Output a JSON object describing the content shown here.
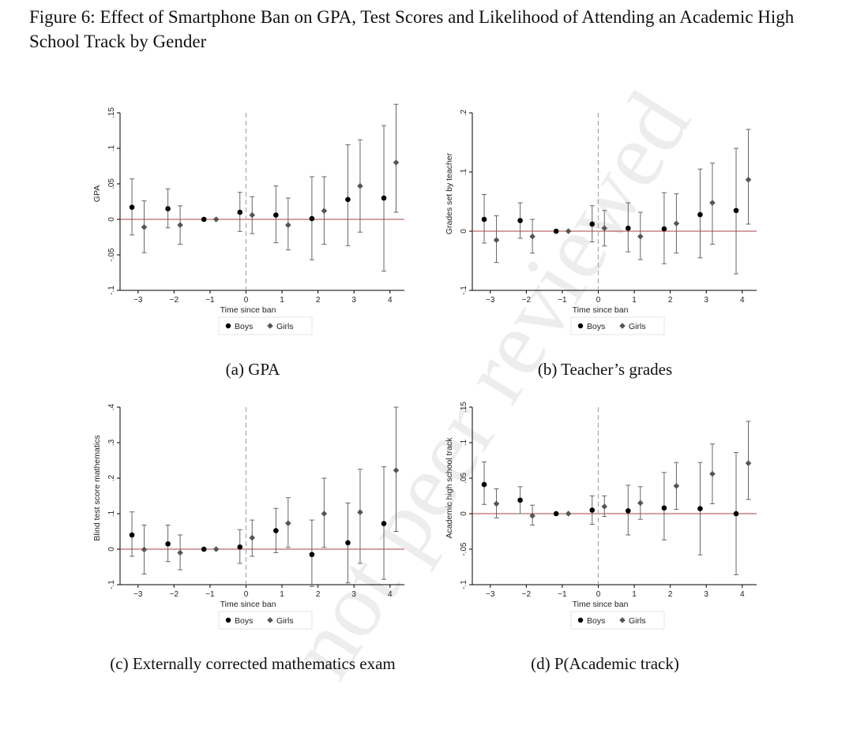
{
  "figure_title": "Figure 6: Effect of Smartphone Ban on GPA, Test Scores and Likelihood of Attending an Academic High School Track by Gender",
  "watermark_text": "not peer reviewed",
  "colors": {
    "boys": "#000000",
    "girls": "#555555",
    "zero_line": "#b04040",
    "ban_line": "#aaaaaa",
    "ci": "#666666"
  },
  "chart_data": [
    {
      "id": "a",
      "type": "scatter",
      "caption": "(a) GPA",
      "xlabel": "Time since ban",
      "ylabel": "GPA",
      "xticks": [
        -3,
        -2,
        -1,
        0,
        1,
        2,
        3,
        4
      ],
      "yticks": [
        -0.1,
        -0.05,
        0,
        0.05,
        0.1,
        0.15
      ],
      "ytick_labels": [
        "-.1",
        "-.05",
        "0",
        ".05",
        ".1",
        ".15"
      ],
      "ylim": [
        -0.1,
        0.15
      ],
      "xlim": [
        -3.5,
        4.4
      ],
      "legend": [
        "Boys",
        "Girls"
      ],
      "series": [
        {
          "name": "Boys",
          "x": [
            -3,
            -2,
            -1,
            0,
            1,
            2,
            3,
            4
          ],
          "y": [
            0.017,
            0.015,
            0.0,
            0.01,
            0.006,
            0.001,
            0.028,
            0.03
          ],
          "lo": [
            -0.022,
            -0.012,
            0.0,
            -0.017,
            -0.033,
            -0.057,
            -0.037,
            -0.073
          ],
          "hi": [
            0.057,
            0.043,
            0.0,
            0.038,
            0.047,
            0.06,
            0.105,
            0.132
          ]
        },
        {
          "name": "Girls",
          "x": [
            -3,
            -2,
            -1,
            0,
            1,
            2,
            3,
            4
          ],
          "y": [
            -0.011,
            -0.008,
            0.0,
            0.006,
            -0.008,
            0.012,
            0.047,
            0.08
          ],
          "lo": [
            -0.047,
            -0.035,
            0.0,
            -0.02,
            -0.043,
            -0.035,
            -0.018,
            0.01
          ],
          "hi": [
            0.026,
            0.019,
            0.0,
            0.032,
            0.03,
            0.06,
            0.112,
            0.162
          ]
        }
      ]
    },
    {
      "id": "b",
      "type": "scatter",
      "caption": "(b) Teacher’s grades",
      "xlabel": "Time since ban",
      "ylabel": "Grades set by teacher",
      "xticks": [
        -3,
        -2,
        -1,
        0,
        1,
        2,
        3,
        4
      ],
      "yticks": [
        -0.1,
        0,
        0.1,
        0.2
      ],
      "ytick_labels": [
        "-.1",
        "0",
        ".1",
        ".2"
      ],
      "ylim": [
        -0.1,
        0.2
      ],
      "xlim": [
        -3.5,
        4.4
      ],
      "legend": [
        "Boys",
        "Girls"
      ],
      "series": [
        {
          "name": "Boys",
          "x": [
            -3,
            -2,
            -1,
            0,
            1,
            2,
            3,
            4
          ],
          "y": [
            0.02,
            0.018,
            0.0,
            0.012,
            0.005,
            0.004,
            0.028,
            0.035
          ],
          "lo": [
            -0.02,
            -0.012,
            0.0,
            -0.018,
            -0.035,
            -0.055,
            -0.045,
            -0.072
          ],
          "hi": [
            0.062,
            0.048,
            0.0,
            0.043,
            0.048,
            0.065,
            0.105,
            0.14
          ]
        },
        {
          "name": "Girls",
          "x": [
            -3,
            -2,
            -1,
            0,
            1,
            2,
            3,
            4
          ],
          "y": [
            -0.015,
            -0.009,
            0.0,
            0.005,
            -0.009,
            0.013,
            0.048,
            0.087
          ],
          "lo": [
            -0.053,
            -0.037,
            0.0,
            -0.025,
            -0.048,
            -0.037,
            -0.022,
            0.012
          ],
          "hi": [
            0.026,
            0.02,
            0.0,
            0.035,
            0.032,
            0.063,
            0.115,
            0.172
          ]
        }
      ]
    },
    {
      "id": "c",
      "type": "scatter",
      "caption": "(c) Externally corrected mathematics exam",
      "xlabel": "Time since ban",
      "ylabel": "Blind test score mathematics",
      "xticks": [
        -3,
        -2,
        -1,
        0,
        1,
        2,
        3,
        4
      ],
      "yticks": [
        -0.1,
        0,
        0.1,
        0.2,
        0.3,
        0.4
      ],
      "ytick_labels": [
        "-.1",
        "0",
        ".1",
        ".2",
        ".3",
        ".4"
      ],
      "ylim": [
        -0.1,
        0.4
      ],
      "xlim": [
        -3.5,
        4.4
      ],
      "legend": [
        "Boys",
        "Girls"
      ],
      "series": [
        {
          "name": "Boys",
          "x": [
            -3,
            -2,
            -1,
            0,
            1,
            2,
            3,
            4
          ],
          "y": [
            0.04,
            0.015,
            0.0,
            0.006,
            0.052,
            -0.015,
            0.018,
            0.072
          ],
          "lo": [
            -0.02,
            -0.035,
            0.0,
            -0.04,
            -0.01,
            -0.105,
            -0.095,
            -0.085
          ],
          "hi": [
            0.105,
            0.068,
            0.0,
            0.055,
            0.115,
            0.082,
            0.13,
            0.232
          ]
        },
        {
          "name": "Girls",
          "x": [
            -3,
            -2,
            -1,
            0,
            1,
            2,
            3,
            4
          ],
          "y": [
            -0.001,
            -0.01,
            0.0,
            0.032,
            0.073,
            0.1,
            0.104,
            0.222
          ],
          "lo": [
            -0.07,
            -0.058,
            0.0,
            -0.02,
            0.005,
            0.005,
            -0.04,
            0.05
          ],
          "hi": [
            0.068,
            0.04,
            0.0,
            0.082,
            0.145,
            0.2,
            0.225,
            0.4
          ]
        }
      ]
    },
    {
      "id": "d",
      "type": "scatter",
      "caption": "(d) P(Academic track)",
      "xlabel": "Time since ban",
      "ylabel": "Academic high school track",
      "xticks": [
        -3,
        -2,
        -1,
        0,
        1,
        2,
        3,
        4
      ],
      "yticks": [
        -0.1,
        -0.05,
        0,
        0.05,
        0.1,
        0.15
      ],
      "ytick_labels": [
        "-.1",
        "-.05",
        "0",
        ".05",
        ".1",
        ".15"
      ],
      "ylim": [
        -0.1,
        0.15
      ],
      "xlim": [
        -3.5,
        4.4
      ],
      "legend": [
        "Boys",
        "Girls"
      ],
      "series": [
        {
          "name": "Boys",
          "x": [
            -3,
            -2,
            -1,
            0,
            1,
            2,
            3,
            4
          ],
          "y": [
            0.041,
            0.019,
            0.0,
            0.005,
            0.004,
            0.008,
            0.007,
            0.0
          ],
          "lo": [
            0.013,
            0.0,
            0.0,
            -0.015,
            -0.03,
            -0.037,
            -0.058,
            -0.086
          ],
          "hi": [
            0.073,
            0.038,
            0.0,
            0.025,
            0.04,
            0.058,
            0.072,
            0.086
          ]
        },
        {
          "name": "Girls",
          "x": [
            -3,
            -2,
            -1,
            0,
            1,
            2,
            3,
            4
          ],
          "y": [
            0.014,
            -0.003,
            0.0,
            0.01,
            0.015,
            0.039,
            0.056,
            0.071
          ],
          "lo": [
            -0.006,
            -0.016,
            0.0,
            -0.004,
            -0.008,
            0.006,
            0.014,
            0.02
          ],
          "hi": [
            0.035,
            0.012,
            0.0,
            0.025,
            0.038,
            0.072,
            0.098,
            0.13
          ]
        }
      ]
    }
  ]
}
